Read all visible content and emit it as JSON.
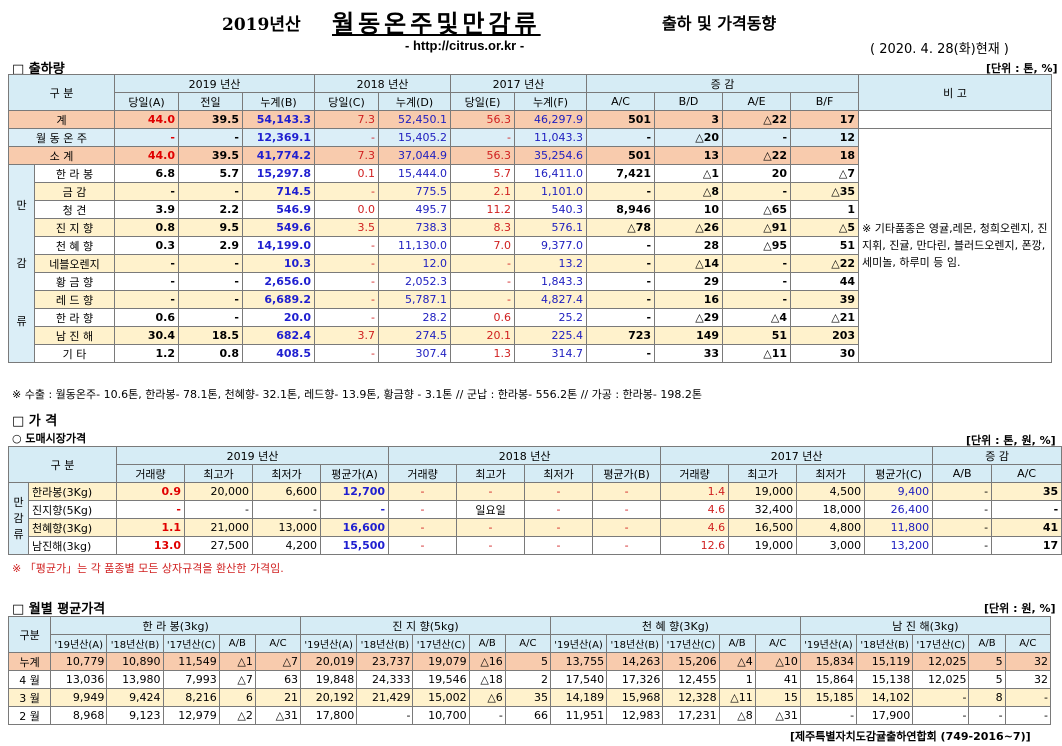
{
  "header": {
    "year_label": "2019년산",
    "main_title": "월동온주및만감류",
    "subtitle": "출하 및 가격동향",
    "url": "- http://citrus.or.kr -",
    "date": "( 2020. 4. 28(화)현재 )"
  },
  "shipment": {
    "section_title": "□ 출하량",
    "unit": "[단위 : 톤, %]",
    "head": {
      "gubun": "구    분",
      "y2019": "2019 년산",
      "y2018": "2018 년산",
      "y2017": "2017 년산",
      "change": "증    감",
      "remark": "비 고",
      "cols": [
        "당일(A)",
        "전일",
        "누계(B)",
        "당일(C)",
        "누계(D)",
        "당일(E)",
        "누계(F)",
        "A/C",
        "B/D",
        "A/E",
        "B/F"
      ]
    },
    "rows": [
      {
        "label": "계",
        "v": [
          "44.0",
          "39.5",
          "54,143.3",
          "7.3",
          "52,450.1",
          "56.3",
          "46,297.9",
          "501",
          "3",
          "△22",
          "17"
        ]
      },
      {
        "label": "월 동 온 주",
        "v": [
          "-",
          "-",
          "12,369.1",
          "-",
          "15,405.2",
          "-",
          "11,043.3",
          "-",
          "△20",
          "-",
          "12"
        ]
      },
      {
        "label": "소    계",
        "v": [
          "44.0",
          "39.5",
          "41,774.2",
          "7.3",
          "37,044.9",
          "56.3",
          "35,254.6",
          "501",
          "13",
          "△22",
          "18"
        ]
      },
      {
        "label": "한 라 봉",
        "v": [
          "6.8",
          "5.7",
          "15,297.8",
          "0.1",
          "15,444.0",
          "5.7",
          "16,411.0",
          "7,421",
          "△1",
          "20",
          "△7"
        ]
      },
      {
        "label": "금    감",
        "v": [
          "-",
          "-",
          "714.5",
          "-",
          "775.5",
          "2.1",
          "1,101.0",
          "-",
          "△8",
          "-",
          "△35"
        ]
      },
      {
        "label": "청    견",
        "v": [
          "3.9",
          "2.2",
          "546.9",
          "0.0",
          "495.7",
          "11.2",
          "540.3",
          "8,946",
          "10",
          "△65",
          "1"
        ]
      },
      {
        "label": "진 지 향",
        "v": [
          "0.8",
          "9.5",
          "549.6",
          "3.5",
          "738.3",
          "8.3",
          "576.1",
          "△78",
          "△26",
          "△91",
          "△5"
        ]
      },
      {
        "label": "천 혜 향",
        "v": [
          "0.3",
          "2.9",
          "14,199.0",
          "-",
          "11,130.0",
          "7.0",
          "9,377.0",
          "-",
          "28",
          "△95",
          "51"
        ]
      },
      {
        "label": "네블오렌지",
        "v": [
          "-",
          "-",
          "10.3",
          "-",
          "12.0",
          "-",
          "13.2",
          "-",
          "△14",
          "-",
          "△22"
        ]
      },
      {
        "label": "황 금 향",
        "v": [
          "-",
          "-",
          "2,656.0",
          "-",
          "2,052.3",
          "-",
          "1,843.3",
          "-",
          "29",
          "-",
          "44"
        ]
      },
      {
        "label": "레 드 향",
        "v": [
          "-",
          "-",
          "6,689.2",
          "-",
          "5,787.1",
          "-",
          "4,827.4",
          "-",
          "16",
          "-",
          "39"
        ]
      },
      {
        "label": "한 라 향",
        "v": [
          "0.6",
          "-",
          "20.0",
          "-",
          "28.2",
          "0.6",
          "25.2",
          "-",
          "△29",
          "△4",
          "△21"
        ]
      },
      {
        "label": "남 진 해",
        "v": [
          "30.4",
          "18.5",
          "682.4",
          "3.7",
          "274.5",
          "20.1",
          "225.4",
          "723",
          "149",
          "51",
          "203"
        ]
      },
      {
        "label": "기    타",
        "v": [
          "1.2",
          "0.8",
          "408.5",
          "-",
          "307.4",
          "1.3",
          "314.7",
          "-",
          "33",
          "△11",
          "30"
        ]
      }
    ],
    "side_group": [
      "만",
      "감",
      "류"
    ],
    "remark_text": "※ 기타품종은 영귤,레몬, 청희오렌지, 진지휘, 진귤, 만다린, 블러드오렌지, 폰깡,세미놀, 하루미 등 임.",
    "footnote": "※ 수출 : 월동온주- 10.6톤, 한라봉- 78.1톤, 천혜향- 32.1톤, 레드향- 13.9톤, 황금향 - 3.1톤  // 군납 : 한라봉- 556.2톤 // 가공 : 한라봉- 198.2톤"
  },
  "price": {
    "section_title": "□ 가    격",
    "sub_title": "○ 도매시장가격",
    "unit": "[단위 : 톤, 원, %]",
    "head": {
      "gubun": "구    분",
      "y2019": "2019 년산",
      "y2018": "2018 년산",
      "y2017": "2017 년산",
      "change": "증    감",
      "cols": [
        "거래량",
        "최고가",
        "최저가",
        "평균가(A)",
        "거래량",
        "최고가",
        "최저가",
        "평균가(B)",
        "거래량",
        "최고가",
        "최저가",
        "평균가(C)",
        "A/B",
        "A/C"
      ]
    },
    "side_group": [
      "만",
      "감",
      "류"
    ],
    "rows": [
      {
        "label": "한라봉(3Kg)",
        "v": [
          "0.9",
          "20,000",
          "6,600",
          "12,700",
          "-",
          "-",
          "-",
          "-",
          "1.4",
          "19,000",
          "4,500",
          "9,400",
          "-",
          "35"
        ]
      },
      {
        "label": "진지향(5Kg)",
        "v": [
          "-",
          "-",
          "-",
          "-",
          "-",
          "일요일",
          "-",
          "-",
          "4.6",
          "32,400",
          "18,000",
          "26,400",
          "-",
          "-"
        ]
      },
      {
        "label": "천혜향(3Kg)",
        "v": [
          "1.1",
          "21,000",
          "13,000",
          "16,600",
          "-",
          "-",
          "-",
          "-",
          "4.6",
          "16,500",
          "4,800",
          "11,800",
          "-",
          "41"
        ]
      },
      {
        "label": "남진해(3kg)",
        "v": [
          "13.0",
          "27,500",
          "4,200",
          "15,500",
          "-",
          "-",
          "-",
          "-",
          "12.6",
          "19,000",
          "3,000",
          "13,200",
          "-",
          "17"
        ]
      }
    ],
    "footnote": "※ 「평균가」는 각 품종별 모든 상자규격을 환산한 가격임."
  },
  "monthly": {
    "section_title": "□ 월별 평균가격",
    "unit": "[단위 : 원, %]",
    "head": {
      "gubun": "구분",
      "groups": [
        "한 라 봉(3kg)",
        "진 지 향(5kg)",
        "천 혜 향(3Kg)",
        "남 진 해(3kg)"
      ],
      "cols": [
        "'19년산(A)",
        "'18년산(B)",
        "'17년산(C)",
        "A/B",
        "A/C"
      ]
    },
    "rows": [
      {
        "label": "누계",
        "v": [
          "10,779",
          "10,890",
          "11,549",
          "△1",
          "△7",
          "20,019",
          "23,737",
          "19,079",
          "△16",
          "5",
          "13,755",
          "14,263",
          "15,206",
          "△4",
          "△10",
          "15,834",
          "15,119",
          "12,025",
          "5",
          "32"
        ]
      },
      {
        "label": "4 월",
        "v": [
          "13,036",
          "13,980",
          "7,993",
          "△7",
          "63",
          "19,848",
          "24,333",
          "19,546",
          "△18",
          "2",
          "17,540",
          "17,326",
          "12,455",
          "1",
          "41",
          "15,864",
          "15,138",
          "12,025",
          "5",
          "32"
        ]
      },
      {
        "label": "3 월",
        "v": [
          "9,949",
          "9,424",
          "8,216",
          "6",
          "21",
          "20,192",
          "21,429",
          "15,002",
          "△6",
          "35",
          "14,189",
          "15,968",
          "12,328",
          "△11",
          "15",
          "15,185",
          "14,102",
          "-",
          "8",
          "-"
        ]
      },
      {
        "label": "2 월",
        "v": [
          "8,968",
          "9,123",
          "12,979",
          "△2",
          "△31",
          "17,800",
          "-",
          "10,700",
          "-",
          "66",
          "11,951",
          "12,983",
          "17,231",
          "△8",
          "△31",
          "-",
          "17,900",
          "-",
          "-",
          "-"
        ]
      }
    ],
    "footer": "[제주특별자치도감귤출하연합회 (749-2016~7)]"
  }
}
